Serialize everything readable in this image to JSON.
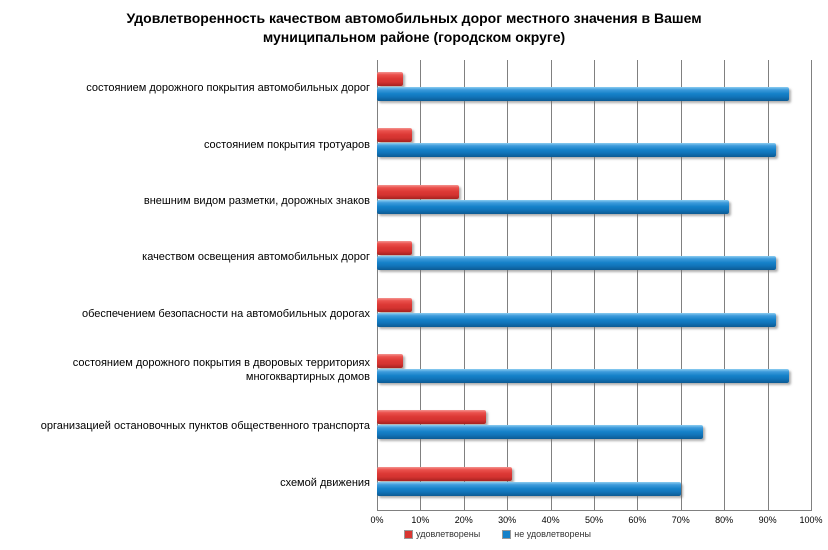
{
  "title_lines": [
    "Удовлетворенность качеством автомобильных дорог местного значения в Вашем",
    "муниципальном районе (городском округе)"
  ],
  "chart_data": {
    "type": "bar",
    "orientation": "horizontal",
    "title": "Удовлетворенность качеством автомобильных дорог местного значения в Вашем муниципальном районе (городском округе)",
    "categories": [
      "состоянием дорожного покрытия автомобильных дорог",
      "состоянием покрытия тротуаров",
      "внешним видом разметки, дорожных знаков",
      "качеством освещения автомобильных дорог",
      "обеспечением безопасности на автомобильных дорогах",
      "состоянием дорожного покрытия в дворовых территориях многоквартирных домов",
      "организацией остановочных пунктов общественного транспорта",
      "схемой движения"
    ],
    "series": [
      {
        "name": "удовлетворены",
        "color": "#d93531",
        "values": [
          6,
          8,
          19,
          8,
          8,
          6,
          25,
          31
        ]
      },
      {
        "name": "не удовлетворены",
        "color": "#1581c9",
        "values": [
          95,
          92,
          81,
          92,
          92,
          95,
          75,
          70
        ]
      }
    ],
    "x_axis": {
      "min": 0,
      "max": 100,
      "grid": true,
      "ticks": [
        "0%",
        "10%",
        "20%",
        "30%",
        "40%",
        "50%",
        "60%",
        "70%",
        "80%",
        "90%",
        "100%"
      ]
    },
    "legend_position": "bottom",
    "grid_color": "#808080"
  }
}
